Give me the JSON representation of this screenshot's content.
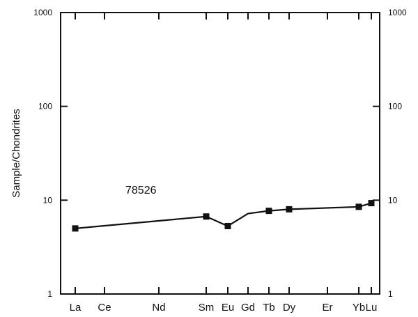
{
  "chart_data": {
    "type": "line",
    "title": "",
    "xlabel": "",
    "ylabel": "Sample/Chondrites",
    "y_scale": "log",
    "ylim": [
      1,
      1000
    ],
    "y_ticks": [
      "1",
      "10",
      "100",
      "1000"
    ],
    "y_ticks_right": [
      "1",
      "10",
      "100",
      "1000"
    ],
    "categories": [
      "La",
      "Ce",
      "Nd",
      "Sm",
      "Eu",
      "Gd",
      "Tb",
      "Dy",
      "Er",
      "Yb",
      "Lu"
    ],
    "x": [
      "La",
      "Sm",
      "Eu",
      "Gd",
      "Tb",
      "Dy",
      "Yb",
      "Lu"
    ],
    "values": [
      5.0,
      6.7,
      5.3,
      7.2,
      7.7,
      8.0,
      8.5,
      9.3
    ],
    "marker_flags": [
      true,
      true,
      true,
      false,
      true,
      true,
      true,
      true
    ],
    "annotation": "78526",
    "grid": false,
    "line_color": "#111111",
    "marker": "square"
  }
}
